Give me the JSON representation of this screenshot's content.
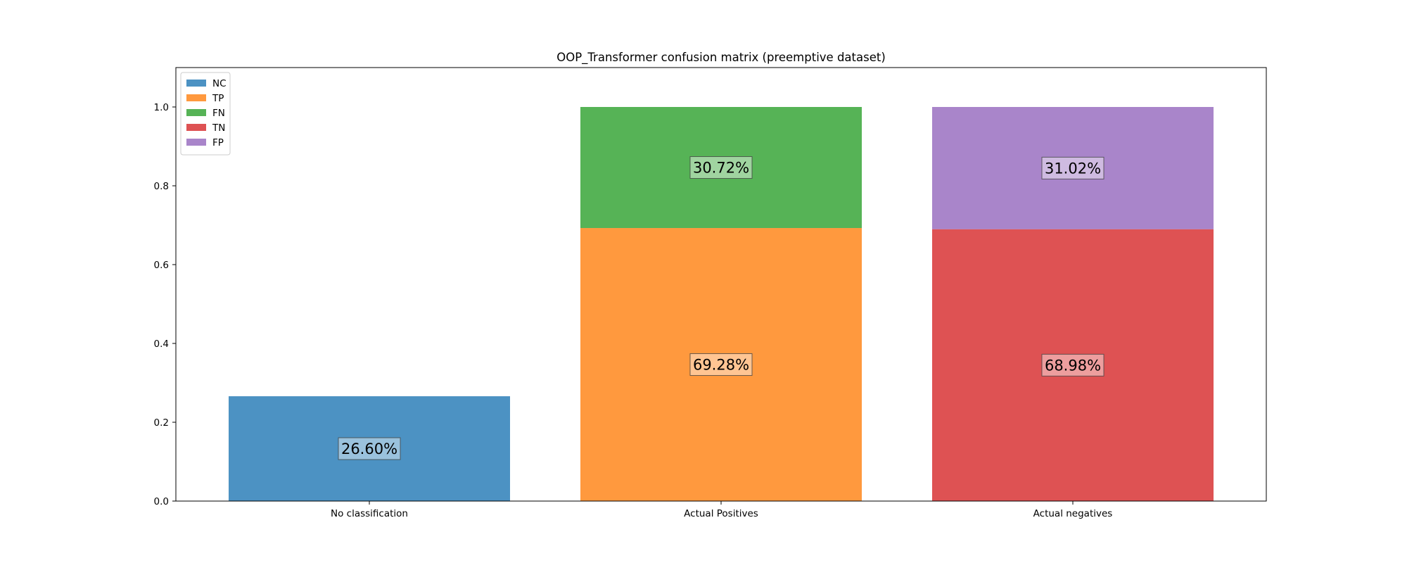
{
  "chart_data": {
    "type": "bar",
    "stacked": true,
    "title": "OOP_Transformer confusion matrix (preemptive dataset)",
    "xlabel": "",
    "ylabel": "",
    "categories": [
      "No classification",
      "Actual Positives",
      "Actual negatives"
    ],
    "ylim": [
      0,
      1.1
    ],
    "yticks": [
      "0.0",
      "0.2",
      "0.4",
      "0.6",
      "0.8",
      "1.0"
    ],
    "grid": false,
    "legend_position": "top-left",
    "series": [
      {
        "name": "NC",
        "color": "#1f77b4",
        "values": [
          0.266,
          0,
          0
        ],
        "labels": [
          "26.60%",
          "",
          ""
        ]
      },
      {
        "name": "TP",
        "color": "#ff7f0e",
        "values": [
          0,
          0.6928,
          0
        ],
        "labels": [
          "",
          "69.28%",
          ""
        ]
      },
      {
        "name": "FN",
        "color": "#2ca02c",
        "values": [
          0,
          0.3072,
          0
        ],
        "labels": [
          "",
          "30.72%",
          ""
        ]
      },
      {
        "name": "TN",
        "color": "#d62728",
        "values": [
          0,
          0,
          0.6898
        ],
        "labels": [
          "",
          "",
          "68.98%"
        ]
      },
      {
        "name": "FP",
        "color": "#9467bd",
        "values": [
          0,
          0,
          0.3102
        ],
        "labels": [
          "",
          "",
          "31.02%"
        ]
      }
    ]
  }
}
